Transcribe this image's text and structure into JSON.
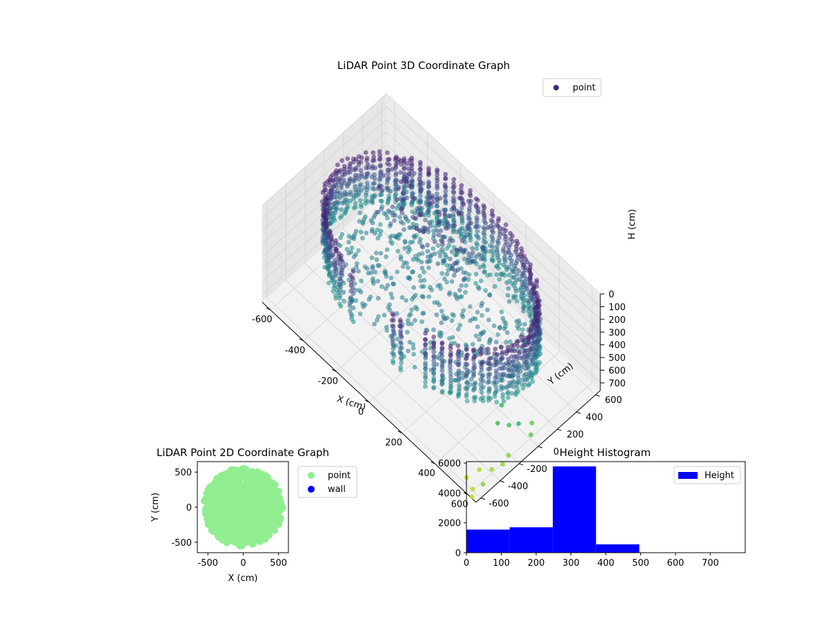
{
  "figure": {
    "colors": {
      "background": "#ffffff",
      "pane": "#f2f2f2",
      "grid": "#d2d2d2"
    }
  },
  "chart_data": [
    {
      "id": "lidar-3d",
      "type": "scatter",
      "title": "LiDAR Point 3D Coordinate Graph",
      "xlabel": "X (cm)",
      "ylabel": "Y (cm)",
      "zlabel": "H (cm)",
      "xlim": [
        -650,
        650
      ],
      "ylim": [
        -650,
        650
      ],
      "zlim": [
        0,
        760
      ],
      "z_inverted": true,
      "xticks": [
        -600,
        -400,
        -200,
        0,
        200,
        400,
        600
      ],
      "yticks": [
        -600,
        -400,
        -200,
        0,
        200,
        400,
        600
      ],
      "zticks": [
        0,
        100,
        200,
        300,
        400,
        500,
        600,
        700
      ],
      "legend": {
        "position": "top-right",
        "entries": [
          {
            "label": "point",
            "color": "#482475"
          }
        ]
      },
      "colormap": "viridis",
      "series": [
        {
          "name": "point",
          "description_of_structure": "cylindrical wall of radius ~560 cm spanning heights ~20-420 cm, plus interior blob",
          "wall_radius": 560,
          "wall_height_range": [
            20,
            430
          ],
          "outliers": [
            {
              "x": 600,
              "y": -120,
              "h": 560
            },
            {
              "x": 560,
              "y": -150,
              "h": 600
            },
            {
              "x": 640,
              "y": -60,
              "h": 640
            },
            {
              "x": 600,
              "y": 20,
              "h": 650
            },
            {
              "x": 620,
              "y": -260,
              "h": 690
            },
            {
              "x": 620,
              "y": -320,
              "h": 720
            },
            {
              "x": 600,
              "y": -400,
              "h": 730
            },
            {
              "x": 560,
              "y": -460,
              "h": 740
            },
            {
              "x": 640,
              "y": -560,
              "h": 690
            },
            {
              "x": 600,
              "y": -600,
              "h": 750
            },
            {
              "x": 620,
              "y": -640,
              "h": 760
            },
            {
              "x": 540,
              "y": -560,
              "h": 760
            },
            {
              "x": 520,
              "y": -200,
              "h": 600
            },
            {
              "x": 480,
              "y": -90,
              "h": 580
            }
          ]
        }
      ]
    },
    {
      "id": "lidar-2d",
      "type": "scatter",
      "title": "LiDAR Point 2D Coordinate Graph",
      "xlabel": "X (cm)",
      "ylabel": "Y (cm)",
      "xlim": [
        -650,
        640
      ],
      "ylim": [
        -650,
        650
      ],
      "xticks": [
        -500,
        0,
        500
      ],
      "yticks": [
        -500,
        0,
        500
      ],
      "legend": {
        "position": "outside-right",
        "entries": [
          {
            "label": "point",
            "color": "#90ee90"
          },
          {
            "label": "wall",
            "color": "#0000ff"
          }
        ]
      },
      "series": [
        {
          "name": "point",
          "color": "#90ee90",
          "shape": "filled disk radius ~580 cm, clipped on right at x≈640"
        },
        {
          "name": "wall",
          "color": "#0000ff",
          "points": []
        }
      ]
    },
    {
      "id": "height-hist",
      "type": "bar",
      "title": "Height Histogram",
      "xlim": [
        0,
        800
      ],
      "ylim": [
        0,
        6100
      ],
      "xticks": [
        0,
        100,
        200,
        300,
        400,
        500,
        600,
        700
      ],
      "yticks": [
        0,
        2000,
        4000,
        6000
      ],
      "bins": [
        {
          "start": 0,
          "end": 124,
          "count": 1550
        },
        {
          "start": 124,
          "end": 248,
          "count": 1700
        },
        {
          "start": 248,
          "end": 372,
          "count": 5780
        },
        {
          "start": 372,
          "end": 496,
          "count": 560
        },
        {
          "start": 496,
          "end": 620,
          "count": 12
        },
        {
          "start": 620,
          "end": 744,
          "count": 10
        }
      ],
      "bar_color": "#0000ff",
      "legend": {
        "position": "top-right",
        "entries": [
          {
            "label": "Height",
            "color": "#0000ff"
          }
        ]
      }
    }
  ]
}
